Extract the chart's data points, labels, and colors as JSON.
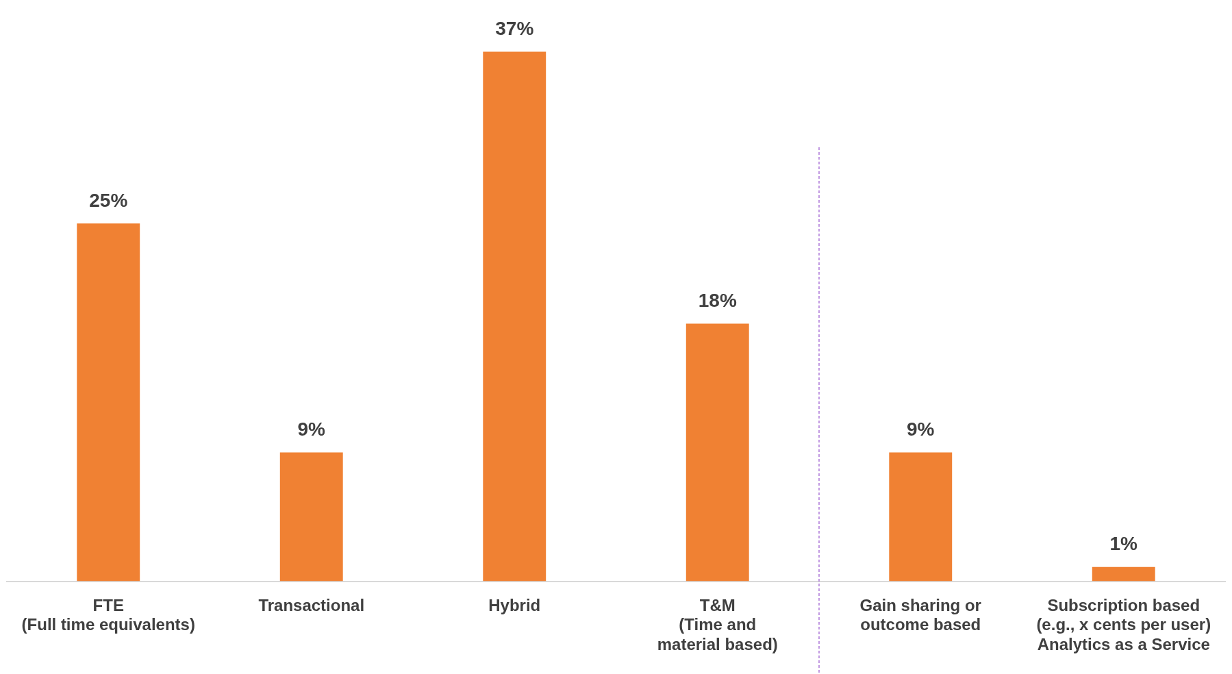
{
  "chart_data": {
    "type": "bar",
    "categories": [
      "FTE\n(Full time equivalents)",
      "Transactional",
      "Hybrid",
      "T&M\n(Time and\nmaterial based)",
      "Gain sharing or\noutcome based",
      "Subscription based\n(e.g., x cents per user)\nAnalytics as a Service"
    ],
    "values": [
      25,
      9,
      37,
      18,
      9,
      1
    ],
    "color": "#f08133",
    "data_labels": true,
    "value_labels": [
      "25%",
      "9%",
      "37%",
      "18%",
      "9%",
      "1%"
    ],
    "grid": false,
    "legend": false
  }
}
